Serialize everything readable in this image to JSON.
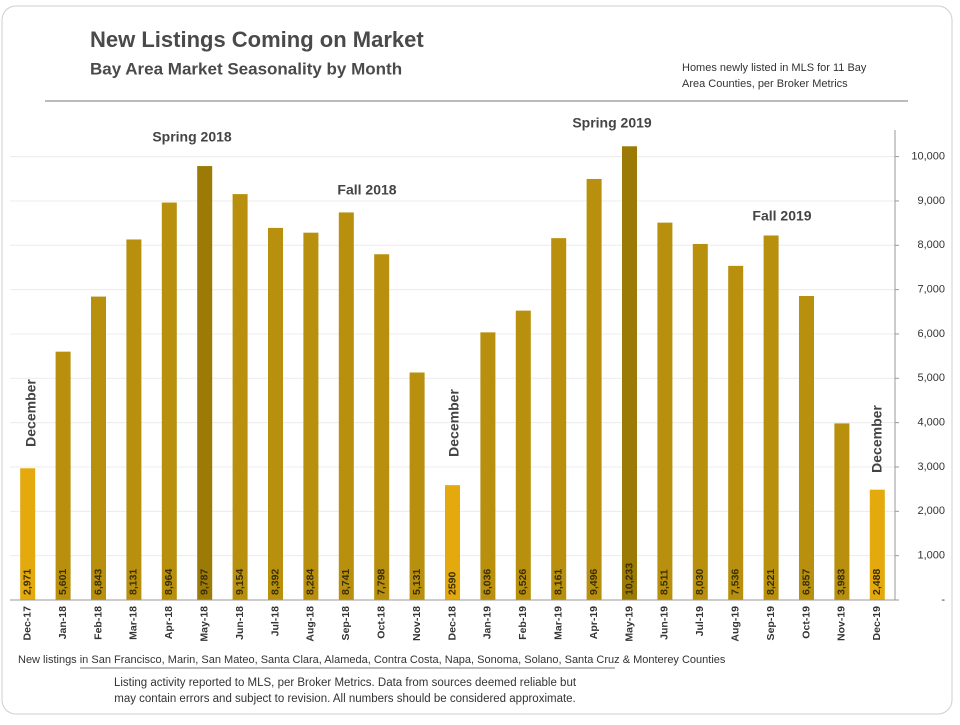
{
  "chart_data": {
    "type": "bar",
    "title": "New Listings Coming on Market",
    "subtitle": "Bay Area Market Seasonality  by Month",
    "note": [
      "Homes newly listed in MLS for 11 Bay",
      "Area Counties, per Broker Metrics"
    ],
    "categories": [
      "Dec-17",
      "Jan-18",
      "Feb-18",
      "Mar-18",
      "Apr-18",
      "May-18",
      "Jun-18",
      "Jul-18",
      "Aug-18",
      "Sep-18",
      "Oct-18",
      "Nov-18",
      "Dec-18",
      "Jan-19",
      "Feb-19",
      "Mar-19",
      "Apr-19",
      "May-19",
      "Jun-19",
      "Jul-19",
      "Aug-19",
      "Sep-19",
      "Oct-19",
      "Nov-19",
      "Dec-19"
    ],
    "values": [
      2971,
      5601,
      6843,
      8131,
      8964,
      9787,
      9154,
      8392,
      8284,
      8741,
      7798,
      5131,
      2590,
      6036,
      6526,
      8161,
      9496,
      10233,
      8511,
      8030,
      7536,
      8221,
      6857,
      3983,
      2488
    ],
    "value_labels": [
      "2,971",
      "5,601",
      "6,843",
      "8,131",
      "8,964",
      "9,787",
      "9,154",
      "8,392",
      "8,284",
      "8,741",
      "7,798",
      "5,131",
      "2590",
      "6,036",
      "6,526",
      "8,161",
      "9,496",
      "10,233",
      "8,511",
      "8,030",
      "7,536",
      "8,221",
      "6,857",
      "3,983",
      "2,488"
    ],
    "colors": [
      "#e3a90d",
      "#b8900d",
      "#b8900d",
      "#b8900d",
      "#b8900d",
      "#9b7a06",
      "#b8900d",
      "#b8900d",
      "#b8900d",
      "#b8900d",
      "#b8900d",
      "#b8900d",
      "#e3a90d",
      "#b8900d",
      "#b8900d",
      "#b8900d",
      "#b8900d",
      "#9b7a06",
      "#b8900d",
      "#b8900d",
      "#b8900d",
      "#b8900d",
      "#b8900d",
      "#b8900d",
      "#e3a90d"
    ],
    "ylim": [
      0,
      10600
    ],
    "yticks": [
      {
        "value": 0,
        "label": "-"
      },
      {
        "value": 1000,
        "label": "1,000"
      },
      {
        "value": 2000,
        "label": "2,000"
      },
      {
        "value": 3000,
        "label": "3,000"
      },
      {
        "value": 4000,
        "label": "4,000"
      },
      {
        "value": 5000,
        "label": "5,000"
      },
      {
        "value": 6000,
        "label": "6,000"
      },
      {
        "value": 7000,
        "label": "7,000"
      },
      {
        "value": 8000,
        "label": "8,000"
      },
      {
        "value": 9000,
        "label": "9,000"
      },
      {
        "value": 10000,
        "label": "10,000"
      }
    ],
    "grid": true,
    "annotations": [
      "Spring 2018",
      "Fall 2018",
      "Spring 2019",
      "Fall 2019",
      "December",
      "December",
      "December"
    ],
    "footer": "New listings in San Francisco, Marin, San Mateo, Santa Clara, Alameda, Contra Costa, Napa, Sonoma, Solano, Santa Cruz & Monterey Counties",
    "footnote": [
      "Listing activity reported to MLS, per Broker Metrics. Data from sources deemed reliable but",
      "may contain errors and subject to revision. All numbers should be considered approximate."
    ]
  }
}
